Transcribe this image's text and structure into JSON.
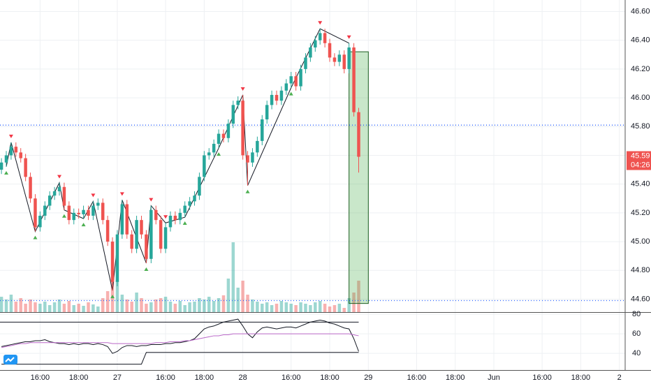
{
  "chart_data": {
    "type": "candlestick",
    "x": [
      -8,
      -7,
      -6,
      -5,
      -4,
      -3,
      -2,
      -1,
      0,
      1,
      2,
      3,
      4,
      5,
      6,
      7,
      8,
      9,
      10,
      11,
      12,
      13,
      14,
      15,
      16,
      17,
      18,
      19,
      20,
      21,
      22,
      23,
      24,
      25,
      26,
      27,
      28,
      29,
      30,
      31,
      32,
      33,
      34,
      35,
      36,
      37,
      38,
      39,
      40,
      41,
      42,
      43,
      44,
      45,
      46,
      47,
      48,
      49,
      50,
      51,
      52,
      53,
      54,
      55,
      56,
      57,
      58,
      59,
      60,
      61,
      62,
      63,
      64,
      65,
      66
    ],
    "open": [
      45.5,
      45.55,
      45.6,
      45.66,
      45.62,
      45.58,
      45.45,
      45.3,
      45.1,
      45.18,
      45.25,
      45.32,
      45.35,
      45.38,
      45.25,
      45.15,
      45.2,
      45.19,
      45.22,
      45.18,
      45.25,
      45.27,
      45.15,
      45.0,
      44.72,
      45.05,
      45.26,
      45.05,
      44.95,
      45.15,
      45.05,
      44.88,
      45.22,
      45.15,
      44.95,
      45.1,
      45.18,
      45.15,
      45.2,
      45.25,
      45.28,
      45.32,
      45.45,
      45.6,
      45.62,
      45.68,
      45.75,
      45.72,
      45.82,
      45.95,
      45.98,
      45.6,
      45.55,
      45.62,
      45.7,
      45.85,
      45.95,
      46.02,
      45.98,
      46.05,
      46.1,
      46.15,
      46.08,
      46.2,
      46.28,
      46.35,
      46.4,
      46.45,
      46.38,
      46.28,
      46.25,
      46.3,
      46.2,
      46.35,
      45.9
    ],
    "high": [
      45.58,
      45.63,
      45.69,
      45.69,
      45.65,
      45.61,
      45.48,
      45.33,
      45.21,
      45.28,
      45.35,
      45.38,
      45.41,
      45.41,
      45.28,
      45.23,
      45.23,
      45.25,
      45.25,
      45.28,
      45.3,
      45.3,
      45.18,
      45.03,
      45.08,
      45.29,
      45.29,
      45.08,
      45.18,
      45.18,
      45.08,
      45.25,
      45.25,
      45.18,
      45.13,
      45.21,
      45.21,
      45.23,
      45.28,
      45.31,
      45.35,
      45.48,
      45.63,
      45.65,
      45.71,
      45.78,
      45.78,
      45.85,
      45.98,
      46.01,
      46.02,
      45.63,
      45.65,
      45.73,
      45.88,
      45.98,
      46.05,
      46.05,
      46.08,
      46.13,
      46.18,
      46.18,
      46.23,
      46.31,
      46.38,
      46.43,
      46.48,
      46.48,
      46.41,
      46.31,
      46.33,
      46.33,
      46.38,
      46.38,
      45.93
    ],
    "low": [
      45.47,
      45.52,
      45.57,
      45.59,
      45.55,
      45.42,
      45.27,
      45.07,
      45.07,
      45.15,
      45.22,
      45.29,
      45.32,
      45.22,
      45.12,
      45.12,
      45.16,
      45.16,
      45.15,
      45.15,
      45.22,
      45.12,
      44.97,
      44.66,
      44.69,
      45.02,
      45.02,
      44.92,
      44.92,
      45.02,
      44.85,
      44.85,
      45.12,
      44.92,
      44.92,
      45.07,
      45.12,
      45.12,
      45.17,
      45.22,
      45.25,
      45.29,
      45.42,
      45.57,
      45.59,
      45.65,
      45.69,
      45.69,
      45.79,
      45.92,
      45.57,
      45.39,
      45.52,
      45.59,
      45.67,
      45.82,
      45.92,
      45.95,
      45.95,
      46.02,
      46.07,
      46.05,
      46.05,
      46.17,
      46.25,
      46.32,
      46.37,
      46.35,
      46.25,
      46.22,
      46.22,
      46.17,
      46.17,
      45.87,
      45.48
    ],
    "close": [
      45.55,
      45.6,
      45.66,
      45.62,
      45.58,
      45.45,
      45.3,
      45.1,
      45.18,
      45.25,
      45.32,
      45.35,
      45.38,
      45.25,
      45.15,
      45.2,
      45.19,
      45.22,
      45.18,
      45.25,
      45.27,
      45.15,
      45.0,
      44.72,
      45.05,
      45.26,
      45.05,
      44.95,
      45.15,
      45.05,
      44.88,
      45.22,
      45.15,
      44.95,
      45.1,
      45.18,
      45.15,
      45.2,
      45.25,
      45.28,
      45.32,
      45.45,
      45.6,
      45.62,
      45.68,
      45.75,
      45.72,
      45.82,
      45.95,
      45.98,
      45.6,
      45.55,
      45.62,
      45.7,
      45.85,
      45.95,
      46.02,
      45.98,
      46.05,
      46.1,
      46.15,
      46.08,
      46.2,
      46.28,
      46.35,
      46.4,
      46.45,
      46.38,
      46.28,
      46.25,
      46.3,
      46.2,
      46.35,
      45.9,
      45.59
    ],
    "volume": [
      22,
      18,
      25,
      15,
      20,
      12,
      18,
      14,
      12,
      15,
      10,
      14,
      18,
      12,
      16,
      10,
      12,
      9,
      14,
      11,
      8,
      20,
      30,
      59,
      45,
      25,
      18,
      15,
      28,
      20,
      12,
      14,
      18,
      20,
      22,
      15,
      12,
      16,
      10,
      14,
      15,
      20,
      18,
      22,
      16,
      20,
      24,
      48,
      100,
      35,
      45,
      25,
      18,
      15,
      12,
      14,
      10,
      12,
      16,
      14,
      12,
      10,
      14,
      12,
      10,
      14,
      16,
      12,
      8,
      10,
      12,
      6,
      20,
      28,
      45
    ],
    "up_color": "#26a69a",
    "down_color": "#ef5350",
    "xlim": [
      -8.3,
      121.2
    ],
    "xticks": [
      {
        "value": 0,
        "label": "16:00"
      },
      {
        "value": 8,
        "label": "18:00"
      },
      {
        "value": 16,
        "label": "27"
      },
      {
        "value": 26,
        "label": "16:00"
      },
      {
        "value": 34,
        "label": "18:00"
      },
      {
        "value": 42,
        "label": "28"
      },
      {
        "value": 52,
        "label": "16:00"
      },
      {
        "value": 60,
        "label": "18:00"
      },
      {
        "value": 68,
        "label": "29"
      },
      {
        "value": 78,
        "label": "16:00"
      },
      {
        "value": 86,
        "label": "18:00"
      },
      {
        "value": 94,
        "label": "Jun"
      },
      {
        "value": 104,
        "label": "16:00"
      },
      {
        "value": 112,
        "label": "18:00"
      },
      {
        "value": 120,
        "label": "2"
      }
    ],
    "ylim": [
      44.51,
      46.68
    ],
    "yticks": [
      {
        "value": 46.6,
        "label": "46.60"
      },
      {
        "value": 46.4,
        "label": "46.40"
      },
      {
        "value": 46.2,
        "label": "46.20"
      },
      {
        "value": 46,
        "label": "46.00"
      },
      {
        "value": 45.8,
        "label": "45.80"
      },
      {
        "value": 45.6,
        "label": "45.60"
      },
      {
        "value": 45.4,
        "label": "45.40"
      },
      {
        "value": 45.2,
        "label": "45.20"
      },
      {
        "value": 45,
        "label": "45.00"
      },
      {
        "value": 44.8,
        "label": "44.80"
      },
      {
        "value": 44.6,
        "label": "44.60"
      }
    ],
    "volume_lim": [
      0,
      100
    ],
    "hlines": [
      45.81,
      44.59
    ],
    "box": {
      "x": [
        64,
        68
      ],
      "y": [
        44.57,
        46.32
      ]
    },
    "pivot_highs": [
      -6,
      4,
      11,
      17,
      23,
      26,
      42,
      58,
      64
    ],
    "pivot_lows": [
      -7,
      -1,
      5,
      9,
      15,
      22,
      30,
      37,
      43,
      52
    ],
    "last_price_label": "45.59",
    "countdown": "04:26",
    "oscillator": {
      "ylim": [
        23,
        81.5
      ],
      "yticks": [
        80,
        60,
        40
      ],
      "hlines": [
        72
      ],
      "series": [
        {
          "color": "#131722",
          "values": [
            47,
            48,
            49,
            50,
            51,
            52,
            52,
            53,
            53,
            54,
            52,
            51,
            50,
            50,
            49,
            50,
            49,
            50,
            50,
            49,
            50,
            49,
            47,
            40,
            42,
            46,
            48,
            48,
            47,
            48,
            48,
            49,
            49,
            49,
            50,
            50,
            51,
            51,
            52,
            53,
            55,
            60,
            65,
            67,
            68,
            70,
            72,
            73,
            74,
            75,
            68,
            60,
            56,
            62,
            66,
            67,
            66,
            65,
            66,
            67,
            67,
            66,
            68,
            70,
            72,
            73,
            74,
            73,
            71,
            70,
            68,
            66,
            65,
            55,
            42
          ]
        },
        {
          "color": "#ba68c8",
          "values": [
            46,
            47,
            48,
            49,
            50,
            50,
            51,
            51,
            51,
            51,
            51,
            51,
            51,
            51,
            51,
            51,
            51,
            51,
            51,
            51,
            51,
            51,
            51,
            50,
            50,
            50,
            50,
            50,
            50,
            50,
            50,
            50,
            51,
            51,
            51,
            52,
            52,
            52,
            53,
            53,
            54,
            55,
            56,
            57,
            58,
            58,
            59,
            59,
            60,
            60,
            60,
            60,
            60,
            60,
            60,
            60,
            60,
            60,
            60,
            60,
            60,
            60,
            60,
            60,
            60,
            60,
            60,
            60,
            60,
            60,
            60,
            60,
            60,
            59,
            58
          ]
        },
        {
          "color": "#131722",
          "values": [
            29,
            29,
            29,
            29,
            29,
            29,
            29,
            29,
            29,
            29,
            29,
            29,
            29,
            29,
            29,
            29,
            29,
            29,
            29,
            29,
            29,
            29,
            29,
            29,
            29,
            29,
            29,
            29,
            29,
            29,
            41,
            41,
            41,
            41,
            41,
            41,
            41,
            41,
            41,
            41,
            41,
            41,
            41,
            41,
            41,
            41,
            41,
            41,
            41,
            41,
            41,
            41,
            41,
            41,
            41,
            41,
            41,
            41,
            41,
            41,
            41,
            41,
            41,
            41,
            41,
            41,
            41,
            41,
            41,
            41,
            41,
            41,
            41,
            41,
            41
          ]
        }
      ]
    }
  }
}
